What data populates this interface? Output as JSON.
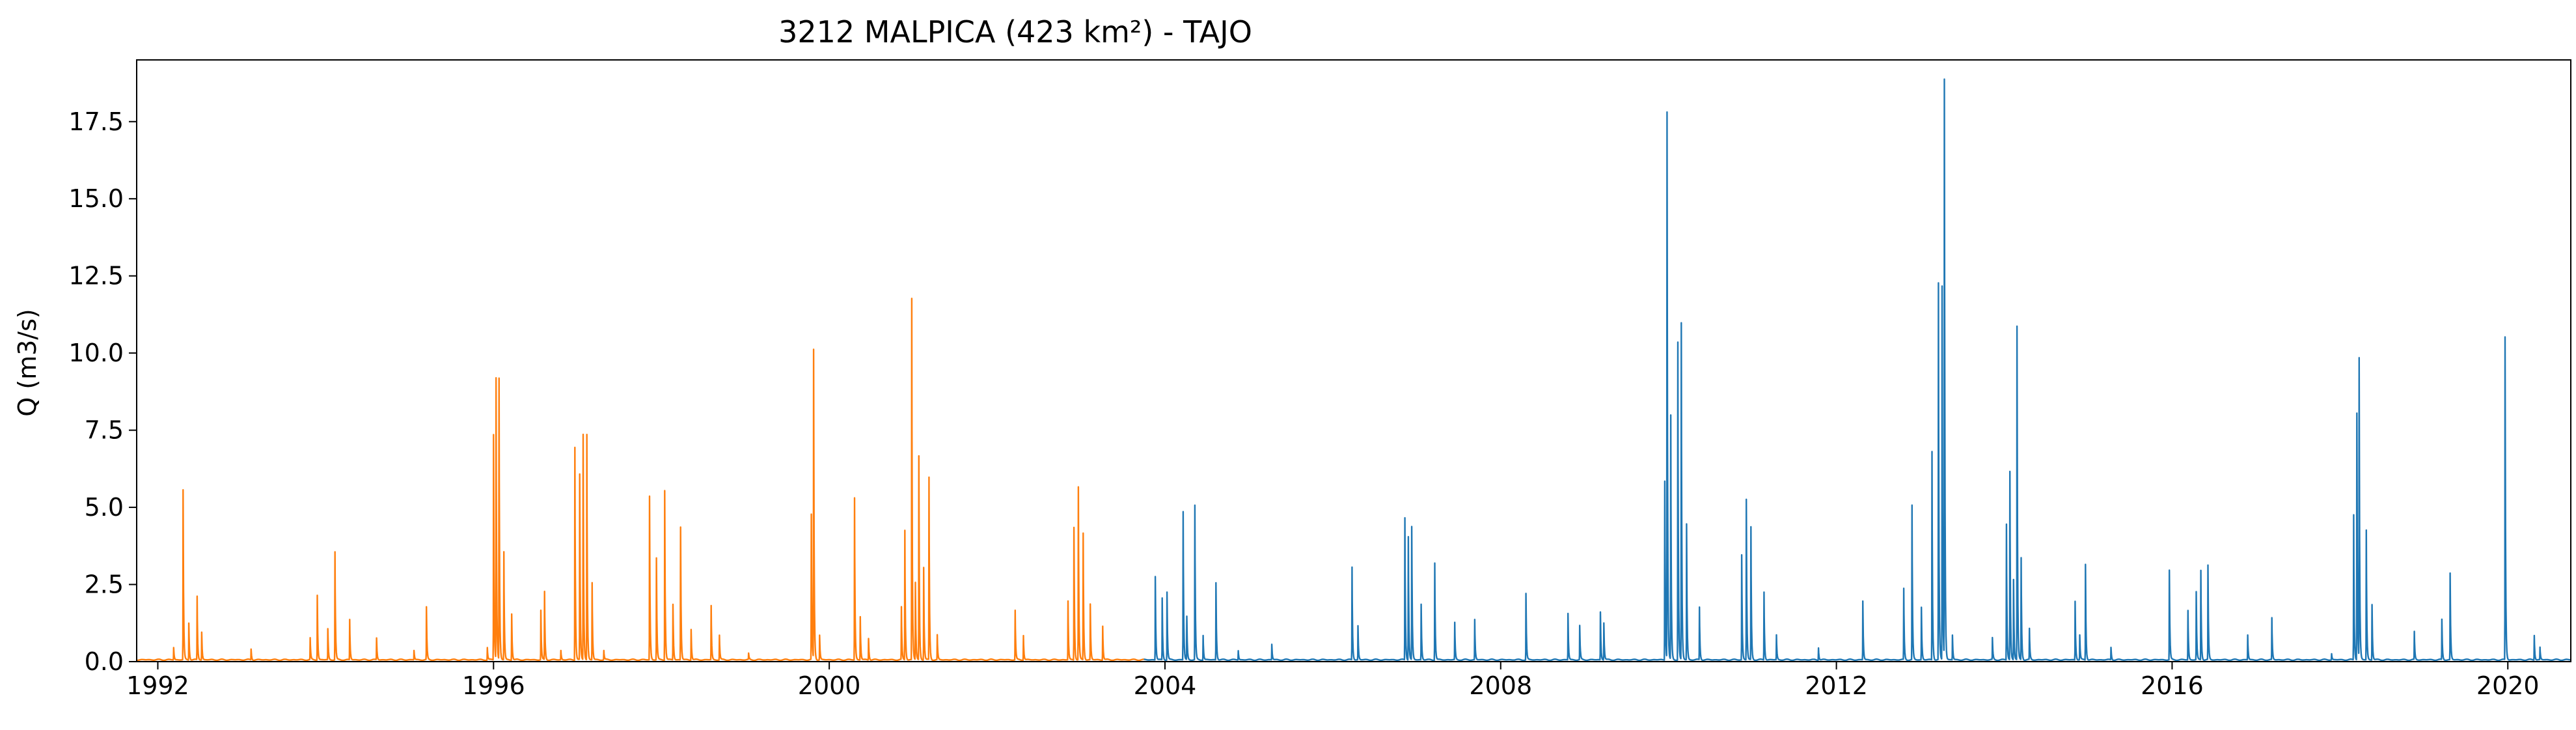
{
  "chart_data": {
    "type": "line",
    "title": "3212 MALPICA (423 km²) - TAJO",
    "xlabel": "",
    "ylabel": "Q (m3/s)",
    "xlim": [
      "1991-10-01",
      "2020-10-01"
    ],
    "ylim": [
      0,
      19.5
    ],
    "x_ticks": [
      "1992",
      "1996",
      "2000",
      "2004",
      "2008",
      "2012",
      "2016",
      "2020"
    ],
    "y_ticks": [
      "0.0",
      "2.5",
      "5.0",
      "7.5",
      "10.0",
      "12.5",
      "15.0",
      "17.5"
    ],
    "grid": false,
    "legend": false,
    "baseflow": 0.06,
    "series": [
      {
        "color": "#ff7f0e",
        "start": "1991-10-01",
        "end": "2003-10-01",
        "peaks": [
          [
            "1992-03-10",
            0.4
          ],
          [
            "1992-04-20",
            5.5
          ],
          [
            "1992-05-15",
            1.2
          ],
          [
            "1992-06-20",
            2.05
          ],
          [
            "1992-07-10",
            0.9
          ],
          [
            "1993-02-10",
            0.35
          ],
          [
            "1993-10-25",
            0.7
          ],
          [
            "1993-11-25",
            2.1
          ],
          [
            "1994-01-10",
            1.0
          ],
          [
            "1994-02-10",
            3.5
          ],
          [
            "1994-04-15",
            1.3
          ],
          [
            "1994-08-10",
            0.7
          ],
          [
            "1995-01-20",
            0.3
          ],
          [
            "1995-03-15",
            1.7
          ],
          [
            "1995-12-05",
            0.4
          ],
          [
            "1996-01-01",
            7.3
          ],
          [
            "1996-01-12",
            9.1
          ],
          [
            "1996-01-25",
            9.1
          ],
          [
            "1996-02-15",
            3.5
          ],
          [
            "1996-03-20",
            1.5
          ],
          [
            "1996-07-25",
            1.6
          ],
          [
            "1996-08-10",
            2.2
          ],
          [
            "1996-10-20",
            0.3
          ],
          [
            "1996-12-20",
            6.9
          ],
          [
            "1997-01-10",
            6.0
          ],
          [
            "1997-01-25",
            7.3
          ],
          [
            "1997-02-10",
            7.3
          ],
          [
            "1997-03-05",
            2.5
          ],
          [
            "1997-04-25",
            0.3
          ],
          [
            "1997-11-10",
            5.3
          ],
          [
            "1997-12-10",
            3.3
          ],
          [
            "1998-01-15",
            5.5
          ],
          [
            "1998-02-20",
            1.8
          ],
          [
            "1998-03-25",
            4.3
          ],
          [
            "1998-05-10",
            1.0
          ],
          [
            "1998-08-05",
            1.75
          ],
          [
            "1998-09-10",
            0.8
          ],
          [
            "1999-01-15",
            0.2
          ],
          [
            "1999-10-15",
            4.7
          ],
          [
            "1999-10-25",
            10.0
          ],
          [
            "1999-11-20",
            0.8
          ],
          [
            "2000-04-20",
            5.25
          ],
          [
            "2000-05-15",
            1.4
          ],
          [
            "2000-06-20",
            0.7
          ],
          [
            "2000-11-10",
            1.7
          ],
          [
            "2000-11-25",
            4.2
          ],
          [
            "2000-12-25",
            11.7
          ],
          [
            "2001-01-10",
            2.5
          ],
          [
            "2001-01-25",
            6.6
          ],
          [
            "2001-02-15",
            3.0
          ],
          [
            "2001-03-10",
            5.9
          ],
          [
            "2001-04-15",
            0.8
          ],
          [
            "2002-03-20",
            1.6
          ],
          [
            "2002-04-25",
            0.8
          ],
          [
            "2002-11-05",
            1.9
          ],
          [
            "2002-12-01",
            4.3
          ],
          [
            "2002-12-20",
            5.6
          ],
          [
            "2003-01-10",
            4.1
          ],
          [
            "2003-02-10",
            1.8
          ],
          [
            "2003-04-05",
            1.1
          ]
        ]
      },
      {
        "color": "#1f77b4",
        "start": "2003-10-01",
        "end": "2020-09-30",
        "peaks": [
          [
            "2003-11-20",
            2.7
          ],
          [
            "2003-12-20",
            2.0
          ],
          [
            "2004-01-10",
            2.2
          ],
          [
            "2004-03-20",
            4.8
          ],
          [
            "2004-04-05",
            1.4
          ],
          [
            "2004-05-10",
            5.0
          ],
          [
            "2004-06-15",
            0.8
          ],
          [
            "2004-08-10",
            2.5
          ],
          [
            "2004-11-15",
            0.3
          ],
          [
            "2005-04-10",
            0.5
          ],
          [
            "2006-03-25",
            3.0
          ],
          [
            "2006-04-20",
            1.1
          ],
          [
            "2006-11-10",
            4.6
          ],
          [
            "2006-11-25",
            4.0
          ],
          [
            "2006-12-10",
            4.3
          ],
          [
            "2007-01-20",
            1.8
          ],
          [
            "2007-03-20",
            3.15
          ],
          [
            "2007-06-15",
            1.2
          ],
          [
            "2007-09-10",
            1.3
          ],
          [
            "2008-04-20",
            2.15
          ],
          [
            "2008-10-20",
            1.5
          ],
          [
            "2008-12-10",
            1.1
          ],
          [
            "2009-03-10",
            1.55
          ],
          [
            "2009-03-25",
            1.2
          ],
          [
            "2009-12-15",
            5.8
          ],
          [
            "2009-12-25",
            17.7
          ],
          [
            "2010-01-10",
            7.9
          ],
          [
            "2010-02-10",
            10.3
          ],
          [
            "2010-02-25",
            10.9
          ],
          [
            "2010-03-20",
            4.4
          ],
          [
            "2010-05-15",
            1.7
          ],
          [
            "2010-11-15",
            3.4
          ],
          [
            "2010-12-05",
            5.2
          ],
          [
            "2010-12-25",
            4.3
          ],
          [
            "2011-02-20",
            2.2
          ],
          [
            "2011-04-15",
            0.8
          ],
          [
            "2011-10-15",
            0.4
          ],
          [
            "2012-04-25",
            1.9
          ],
          [
            "2012-10-20",
            2.3
          ],
          [
            "2012-11-25",
            5.0
          ],
          [
            "2013-01-05",
            1.7
          ],
          [
            "2013-02-20",
            6.75
          ],
          [
            "2013-03-20",
            12.2
          ],
          [
            "2013-04-05",
            12.1
          ],
          [
            "2013-04-15",
            18.7
          ],
          [
            "2013-05-20",
            0.8
          ],
          [
            "2013-11-10",
            0.7
          ],
          [
            "2014-01-10",
            4.4
          ],
          [
            "2014-01-25",
            6.1
          ],
          [
            "2014-02-10",
            2.6
          ],
          [
            "2014-02-25",
            10.8
          ],
          [
            "2014-03-15",
            3.3
          ],
          [
            "2014-04-20",
            1.0
          ],
          [
            "2014-11-05",
            1.9
          ],
          [
            "2014-11-25",
            0.8
          ],
          [
            "2014-12-20",
            3.1
          ],
          [
            "2015-04-10",
            0.4
          ],
          [
            "2015-12-20",
            2.9
          ],
          [
            "2016-03-10",
            1.6
          ],
          [
            "2016-04-15",
            2.2
          ],
          [
            "2016-05-05",
            2.9
          ],
          [
            "2016-06-05",
            3.05
          ],
          [
            "2016-11-25",
            0.8
          ],
          [
            "2017-03-10",
            1.35
          ],
          [
            "2017-11-25",
            0.2
          ],
          [
            "2018-03-01",
            4.7
          ],
          [
            "2018-03-15",
            8.0
          ],
          [
            "2018-03-25",
            9.7
          ],
          [
            "2018-04-25",
            4.2
          ],
          [
            "2018-05-20",
            1.8
          ],
          [
            "2018-11-20",
            0.9
          ],
          [
            "2019-03-20",
            1.3
          ],
          [
            "2019-04-25",
            2.8
          ],
          [
            "2019-12-20",
            10.45
          ],
          [
            "2020-04-25",
            0.8
          ],
          [
            "2020-05-20",
            0.4
          ]
        ]
      }
    ]
  }
}
